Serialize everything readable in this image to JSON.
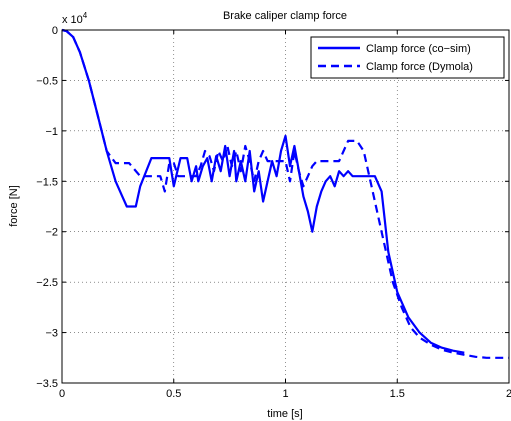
{
  "chart_data": {
    "type": "line",
    "title": "Brake caliper clamp force",
    "xlabel": "time [s]",
    "ylabel": "force [N]",
    "y_multiplier": "x 10",
    "y_multiplier_exponent": "4",
    "xlim": [
      0,
      2
    ],
    "ylim": [
      -3.5,
      0
    ],
    "x_ticks": [
      0,
      0.5,
      1,
      1.5,
      2
    ],
    "x_tick_labels": [
      "0",
      "0.5",
      "1",
      "1.5",
      "2"
    ],
    "y_ticks": [
      0,
      -0.5,
      -1,
      -1.5,
      -2,
      -2.5,
      -3,
      -3.5
    ],
    "y_tick_labels": [
      "0",
      "−0.5",
      "−1",
      "−1.5",
      "−2",
      "−2.5",
      "−3",
      "−3.5"
    ],
    "grid": true,
    "legend_position": "top-right",
    "line_color": "#0000ff",
    "series": [
      {
        "name": "Clamp force (co−sim)",
        "style": "solid",
        "x": [
          0,
          0.02,
          0.05,
          0.08,
          0.12,
          0.16,
          0.2,
          0.24,
          0.27,
          0.29,
          0.33,
          0.35,
          0.4,
          0.44,
          0.48,
          0.5,
          0.53,
          0.56,
          0.58,
          0.6,
          0.61,
          0.63,
          0.65,
          0.67,
          0.69,
          0.71,
          0.73,
          0.75,
          0.77,
          0.78,
          0.8,
          0.82,
          0.84,
          0.86,
          0.88,
          0.9,
          0.92,
          0.94,
          0.96,
          0.98,
          1.0,
          1.02,
          1.04,
          1.06,
          1.08,
          1.1,
          1.12,
          1.14,
          1.16,
          1.18,
          1.2,
          1.22,
          1.24,
          1.26,
          1.28,
          1.3,
          1.32,
          1.36,
          1.4,
          1.43,
          1.46,
          1.5,
          1.55,
          1.6,
          1.65,
          1.7,
          1.75,
          1.8
        ],
        "y": [
          0,
          -0.01,
          -0.07,
          -0.22,
          -0.5,
          -0.85,
          -1.2,
          -1.5,
          -1.65,
          -1.75,
          -1.75,
          -1.55,
          -1.27,
          -1.27,
          -1.27,
          -1.55,
          -1.27,
          -1.27,
          -1.5,
          -1.35,
          -1.5,
          -1.35,
          -1.27,
          -1.5,
          -1.25,
          -1.4,
          -1.15,
          -1.45,
          -1.2,
          -1.5,
          -1.3,
          -1.5,
          -1.2,
          -1.6,
          -1.4,
          -1.7,
          -1.5,
          -1.3,
          -1.45,
          -1.2,
          -1.05,
          -1.35,
          -1.15,
          -1.4,
          -1.65,
          -1.8,
          -2.0,
          -1.75,
          -1.6,
          -1.5,
          -1.45,
          -1.55,
          -1.4,
          -1.45,
          -1.4,
          -1.45,
          -1.45,
          -1.45,
          -1.45,
          -1.6,
          -2.2,
          -2.6,
          -2.85,
          -3.0,
          -3.1,
          -3.15,
          -3.18,
          -3.2
        ]
      },
      {
        "name": "Clamp force (Dymola)",
        "style": "dashed",
        "x": [
          0,
          0.02,
          0.05,
          0.08,
          0.12,
          0.16,
          0.2,
          0.24,
          0.26,
          0.3,
          0.35,
          0.4,
          0.44,
          0.46,
          0.48,
          0.5,
          0.52,
          0.56,
          0.6,
          0.62,
          0.64,
          0.66,
          0.68,
          0.7,
          0.72,
          0.74,
          0.76,
          0.78,
          0.8,
          0.82,
          0.84,
          0.86,
          0.88,
          0.9,
          0.92,
          0.94,
          0.96,
          0.98,
          1.0,
          1.02,
          1.04,
          1.06,
          1.08,
          1.1,
          1.12,
          1.14,
          1.16,
          1.18,
          1.2,
          1.24,
          1.28,
          1.32,
          1.35,
          1.37,
          1.4,
          1.44,
          1.48,
          1.52,
          1.56,
          1.6,
          1.65,
          1.7,
          1.75,
          1.8,
          1.85,
          1.9,
          2.0
        ],
        "y": [
          0,
          -0.01,
          -0.07,
          -0.22,
          -0.5,
          -0.85,
          -1.2,
          -1.32,
          -1.32,
          -1.32,
          -1.45,
          -1.45,
          -1.45,
          -1.6,
          -1.32,
          -1.32,
          -1.45,
          -1.45,
          -1.45,
          -1.35,
          -1.2,
          -1.25,
          -1.4,
          -1.2,
          -1.3,
          -1.15,
          -1.35,
          -1.2,
          -1.4,
          -1.15,
          -1.3,
          -1.5,
          -1.3,
          -1.2,
          -1.3,
          -1.3,
          -1.3,
          -1.3,
          -1.3,
          -1.5,
          -1.2,
          -1.4,
          -1.55,
          -1.45,
          -1.35,
          -1.3,
          -1.3,
          -1.3,
          -1.3,
          -1.3,
          -1.1,
          -1.1,
          -1.2,
          -1.4,
          -1.7,
          -2.1,
          -2.5,
          -2.75,
          -2.95,
          -3.05,
          -3.12,
          -3.17,
          -3.2,
          -3.22,
          -3.24,
          -3.25,
          -3.25
        ]
      }
    ]
  }
}
